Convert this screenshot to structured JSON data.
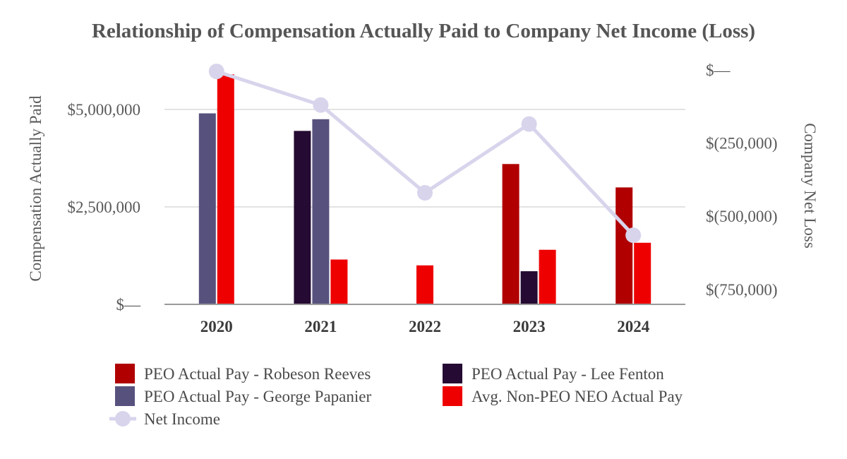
{
  "chart_data": {
    "type": "bar+line",
    "title": "Relationship of Compensation Actually Paid to Company Net Income (Loss)",
    "categories": [
      "2020",
      "2021",
      "2022",
      "2023",
      "2024"
    ],
    "y_left": {
      "label": "Compensation Actually Paid",
      "range": [
        0,
        6000000
      ],
      "ticks": [
        {
          "value": 0,
          "label": "$—"
        },
        {
          "value": 2500000,
          "label": "$2,500,000"
        },
        {
          "value": 5000000,
          "label": "$5,000,000"
        }
      ]
    },
    "y_right": {
      "label": "Company Net Loss",
      "range": [
        -800000,
        0
      ],
      "ticks": [
        {
          "value": 0,
          "label": "$—"
        },
        {
          "value": -250000,
          "label": "$(250,000)"
        },
        {
          "value": -500000,
          "label": "$(500,000)"
        },
        {
          "value": -750000,
          "label": "$(750,000)"
        }
      ]
    },
    "bar_series": [
      {
        "name": "PEO Actual Pay - Robeson Reeves",
        "color": "#B00000",
        "values": [
          null,
          null,
          null,
          3600000,
          3000000
        ]
      },
      {
        "name": "PEO Actual Pay - Lee Fenton",
        "color": "#250A33",
        "values": [
          null,
          4450000,
          null,
          850000,
          null
        ]
      },
      {
        "name": "PEO Actual Pay - George Papanier",
        "color": "#57527D",
        "values": [
          4900000,
          4750000,
          null,
          null,
          null
        ]
      },
      {
        "name": "Avg. Non-PEO NEO Actual Pay",
        "color": "#EE0000",
        "values": [
          5900000,
          1150000,
          1000000,
          1400000,
          1580000
        ]
      }
    ],
    "line_series": {
      "name": "Net Income",
      "color": "#D8D4EC",
      "values": [
        -5000,
        -120000,
        -420000,
        -185000,
        -565000
      ]
    },
    "legend": {
      "position": "bottom",
      "items": [
        {
          "label": "PEO Actual Pay - Robeson Reeves",
          "color": "#B00000",
          "kind": "bar"
        },
        {
          "label": "PEO Actual Pay - Lee Fenton",
          "color": "#250A33",
          "kind": "bar"
        },
        {
          "label": "PEO Actual Pay - George Papanier",
          "color": "#57527D",
          "kind": "bar"
        },
        {
          "label": "Avg. Non-PEO NEO Actual Pay",
          "color": "#EE0000",
          "kind": "bar"
        },
        {
          "label": "Net Income",
          "color": "#D8D4EC",
          "kind": "line"
        }
      ]
    },
    "grid": true,
    "axis_color": "#9a9a9a",
    "grid_color": "#e3e3e3"
  }
}
